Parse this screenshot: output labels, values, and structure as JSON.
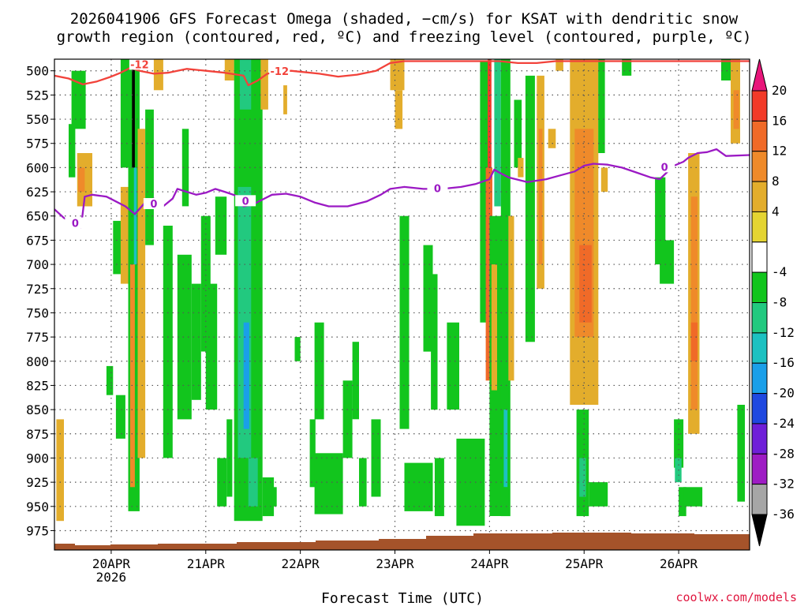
{
  "chart_data": {
    "type": "heatmap",
    "title_line1": "2026041906 GFS Forecast Omega (shaded, −cm/s) for KSAT with dendritic snow",
    "title_line2": "growth region (contoured, red, ºC) and freezing level (contoured, purple, ºC)",
    "xlabel": "Forecast Time (UTC)",
    "credit": "coolwx.com/models",
    "x_ticks": [
      "20APR",
      "21APR",
      "22APR",
      "23APR",
      "24APR",
      "25APR",
      "26APR"
    ],
    "x_tick_sublabel": "2026",
    "x_range_days": [
      19.4,
      26.75
    ],
    "y_ticks": [
      500,
      525,
      550,
      575,
      600,
      625,
      650,
      675,
      700,
      725,
      750,
      775,
      800,
      825,
      850,
      875,
      900,
      925,
      950,
      975
    ],
    "y_range_hpa": [
      488,
      995
    ],
    "colorbar": {
      "labels": [
        "20",
        "16",
        "12",
        "8",
        "4",
        "-4",
        "-8",
        "-12",
        "-16",
        "-20",
        "-24",
        "-28",
        "-32",
        "-36"
      ],
      "colors_top_to_bottom": [
        "#e8157a",
        "#f23a28",
        "#f06a28",
        "#ef8a2a",
        "#e3ad2c",
        "#e4d432",
        "#ffffff",
        "#12c51d",
        "#22c97f",
        "#1cc1c1",
        "#1a9fe9",
        "#1f48e0",
        "#6f1fd8",
        "#9e1cc4",
        "#a6a6a6",
        "#000000"
      ]
    },
    "contour_dgz_label": "-12",
    "contour_freezing_label": "0",
    "dgz_minus12_hpa": [
      [
        19.4,
        505
      ],
      [
        19.55,
        508
      ],
      [
        19.7,
        514
      ],
      [
        19.85,
        511
      ],
      [
        20.0,
        506
      ],
      [
        20.1,
        502
      ],
      [
        20.2,
        497
      ],
      [
        20.3,
        500
      ],
      [
        20.45,
        503
      ],
      [
        20.6,
        502
      ],
      [
        20.8,
        498
      ],
      [
        21.0,
        500
      ],
      [
        21.2,
        502
      ],
      [
        21.4,
        505
      ],
      [
        21.45,
        515
      ],
      [
        21.55,
        510
      ],
      [
        21.65,
        503
      ],
      [
        21.9,
        500
      ],
      [
        22.2,
        503
      ],
      [
        22.4,
        506
      ],
      [
        22.6,
        504
      ],
      [
        22.8,
        500
      ],
      [
        22.95,
        492
      ],
      [
        23.1,
        490
      ],
      [
        23.4,
        490
      ],
      [
        23.7,
        490
      ],
      [
        24.1,
        490
      ],
      [
        24.3,
        492
      ],
      [
        24.5,
        492
      ],
      [
        24.7,
        490
      ],
      [
        25.0,
        490
      ],
      [
        25.4,
        490
      ],
      [
        25.8,
        490
      ],
      [
        26.2,
        490
      ],
      [
        26.75,
        490
      ]
    ],
    "freezing_level_0c_hpa": [
      [
        19.4,
        643
      ],
      [
        19.5,
        652
      ],
      [
        19.6,
        658
      ],
      [
        19.68,
        662
      ],
      [
        19.72,
        630
      ],
      [
        19.8,
        628
      ],
      [
        19.95,
        630
      ],
      [
        20.05,
        635
      ],
      [
        20.15,
        640
      ],
      [
        20.25,
        648
      ],
      [
        20.35,
        637
      ],
      [
        20.45,
        632
      ],
      [
        20.55,
        640
      ],
      [
        20.65,
        632
      ],
      [
        20.7,
        622
      ],
      [
        20.8,
        625
      ],
      [
        20.9,
        628
      ],
      [
        21.0,
        626
      ],
      [
        21.1,
        622
      ],
      [
        21.2,
        625
      ],
      [
        21.35,
        630
      ],
      [
        21.4,
        640
      ],
      [
        21.5,
        638
      ],
      [
        21.6,
        633
      ],
      [
        21.7,
        628
      ],
      [
        21.85,
        627
      ],
      [
        22.0,
        630
      ],
      [
        22.15,
        636
      ],
      [
        22.3,
        640
      ],
      [
        22.5,
        640
      ],
      [
        22.7,
        635
      ],
      [
        22.85,
        628
      ],
      [
        22.95,
        622
      ],
      [
        23.1,
        620
      ],
      [
        23.3,
        622
      ],
      [
        23.5,
        622
      ],
      [
        23.7,
        620
      ],
      [
        23.85,
        617
      ],
      [
        24.0,
        612
      ],
      [
        24.05,
        602
      ],
      [
        24.1,
        605
      ],
      [
        24.2,
        610
      ],
      [
        24.4,
        615
      ],
      [
        24.6,
        612
      ],
      [
        24.75,
        608
      ],
      [
        24.9,
        604
      ],
      [
        25.0,
        598
      ],
      [
        25.1,
        596
      ],
      [
        25.25,
        597
      ],
      [
        25.4,
        600
      ],
      [
        25.55,
        605
      ],
      [
        25.7,
        610
      ],
      [
        25.8,
        612
      ],
      [
        25.95,
        598
      ],
      [
        26.05,
        594
      ],
      [
        26.1,
        590
      ],
      [
        26.2,
        585
      ],
      [
        26.3,
        584
      ],
      [
        26.4,
        581
      ],
      [
        26.5,
        588
      ],
      [
        26.75,
        587
      ]
    ],
    "omega_regions": [
      {
        "t0": 19.42,
        "t1": 19.5,
        "p0": 860,
        "p1": 965,
        "value": 6
      },
      {
        "t0": 19.55,
        "t1": 19.62,
        "p0": 555,
        "p1": 610,
        "value": -6
      },
      {
        "t0": 19.58,
        "t1": 19.73,
        "p0": 500,
        "p1": 560,
        "value": -6
      },
      {
        "t0": 19.64,
        "t1": 19.8,
        "p0": 585,
        "p1": 640,
        "value": 7
      },
      {
        "t0": 19.65,
        "t1": 19.72,
        "p0": 600,
        "p1": 625,
        "value": 10
      },
      {
        "t0": 19.95,
        "t1": 20.02,
        "p0": 805,
        "p1": 835,
        "value": -6
      },
      {
        "t0": 20.02,
        "t1": 20.12,
        "p0": 655,
        "p1": 710,
        "value": -6
      },
      {
        "t0": 20.05,
        "t1": 20.15,
        "p0": 835,
        "p1": 880,
        "value": -6
      },
      {
        "t0": 20.1,
        "t1": 20.2,
        "p0": 488,
        "p1": 600,
        "value": -6
      },
      {
        "t0": 20.1,
        "t1": 20.2,
        "p0": 620,
        "p1": 720,
        "value": 5
      },
      {
        "t0": 20.18,
        "t1": 20.3,
        "p0": 488,
        "p1": 955,
        "value": -6
      },
      {
        "t0": 20.2,
        "t1": 20.25,
        "p0": 700,
        "p1": 930,
        "value": 10
      },
      {
        "t0": 20.22,
        "t1": 20.25,
        "p0": 488,
        "p1": 600,
        "value": -40
      },
      {
        "t0": 20.24,
        "t1": 20.27,
        "p0": 600,
        "p1": 700,
        "value": -14
      },
      {
        "t0": 20.28,
        "t1": 20.36,
        "p0": 560,
        "p1": 900,
        "value": 6
      },
      {
        "t0": 20.36,
        "t1": 20.45,
        "p0": 540,
        "p1": 680,
        "value": -6
      },
      {
        "t0": 20.45,
        "t1": 20.55,
        "p0": 488,
        "p1": 520,
        "value": 6
      },
      {
        "t0": 20.55,
        "t1": 20.65,
        "p0": 660,
        "p1": 900,
        "value": -6
      },
      {
        "t0": 20.7,
        "t1": 20.85,
        "p0": 690,
        "p1": 860,
        "value": -6
      },
      {
        "t0": 20.75,
        "t1": 20.82,
        "p0": 560,
        "p1": 640,
        "value": -6
      },
      {
        "t0": 20.85,
        "t1": 20.95,
        "p0": 720,
        "p1": 840,
        "value": -6
      },
      {
        "t0": 20.95,
        "t1": 21.05,
        "p0": 650,
        "p1": 790,
        "value": -6
      },
      {
        "t0": 21.0,
        "t1": 21.12,
        "p0": 720,
        "p1": 850,
        "value": -6
      },
      {
        "t0": 21.1,
        "t1": 21.22,
        "p0": 630,
        "p1": 690,
        "value": -6
      },
      {
        "t0": 21.12,
        "t1": 21.22,
        "p0": 900,
        "p1": 950,
        "value": -6
      },
      {
        "t0": 21.2,
        "t1": 21.3,
        "p0": 488,
        "p1": 510,
        "value": 6
      },
      {
        "t0": 21.22,
        "t1": 21.28,
        "p0": 860,
        "p1": 940,
        "value": -6
      },
      {
        "t0": 21.3,
        "t1": 21.6,
        "p0": 488,
        "p1": 965,
        "value": -6
      },
      {
        "t0": 21.34,
        "t1": 21.48,
        "p0": 620,
        "p1": 900,
        "value": -10
      },
      {
        "t0": 21.4,
        "t1": 21.46,
        "p0": 760,
        "p1": 870,
        "value": -18
      },
      {
        "t0": 21.36,
        "t1": 21.48,
        "p0": 488,
        "p1": 540,
        "value": -10
      },
      {
        "t0": 21.45,
        "t1": 21.55,
        "p0": 900,
        "p1": 950,
        "value": -10
      },
      {
        "t0": 21.58,
        "t1": 21.66,
        "p0": 488,
        "p1": 540,
        "value": 6
      },
      {
        "t0": 21.6,
        "t1": 21.72,
        "p0": 920,
        "p1": 960,
        "value": -6
      },
      {
        "t0": 21.7,
        "t1": 21.75,
        "p0": 930,
        "p1": 950,
        "value": -6
      },
      {
        "t0": 21.82,
        "t1": 21.86,
        "p0": 515,
        "p1": 545,
        "value": 6
      },
      {
        "t0": 21.94,
        "t1": 22.0,
        "p0": 775,
        "p1": 800,
        "value": -6
      },
      {
        "t0": 22.1,
        "t1": 22.16,
        "p0": 860,
        "p1": 930,
        "value": -6
      },
      {
        "t0": 22.15,
        "t1": 22.25,
        "p0": 760,
        "p1": 860,
        "value": -6
      },
      {
        "t0": 22.15,
        "t1": 22.45,
        "p0": 895,
        "p1": 958,
        "value": -6
      },
      {
        "t0": 22.45,
        "t1": 22.55,
        "p0": 820,
        "p1": 900,
        "value": -6
      },
      {
        "t0": 22.55,
        "t1": 22.62,
        "p0": 780,
        "p1": 860,
        "value": -6
      },
      {
        "t0": 22.62,
        "t1": 22.7,
        "p0": 900,
        "p1": 950,
        "value": -6
      },
      {
        "t0": 22.75,
        "t1": 22.85,
        "p0": 860,
        "p1": 940,
        "value": -6
      },
      {
        "t0": 22.95,
        "t1": 23.1,
        "p0": 488,
        "p1": 520,
        "value": 6
      },
      {
        "t0": 23.0,
        "t1": 23.08,
        "p0": 520,
        "p1": 560,
        "value": 5
      },
      {
        "t0": 23.05,
        "t1": 23.15,
        "p0": 650,
        "p1": 870,
        "value": -6
      },
      {
        "t0": 23.1,
        "t1": 23.4,
        "p0": 905,
        "p1": 955,
        "value": -6
      },
      {
        "t0": 23.3,
        "t1": 23.4,
        "p0": 680,
        "p1": 790,
        "value": -6
      },
      {
        "t0": 23.38,
        "t1": 23.45,
        "p0": 710,
        "p1": 850,
        "value": -6
      },
      {
        "t0": 23.42,
        "t1": 23.52,
        "p0": 900,
        "p1": 960,
        "value": -6
      },
      {
        "t0": 23.55,
        "t1": 23.68,
        "p0": 760,
        "p1": 850,
        "value": -6
      },
      {
        "t0": 23.65,
        "t1": 23.95,
        "p0": 880,
        "p1": 970,
        "value": -6
      },
      {
        "t0": 23.9,
        "t1": 24.0,
        "p0": 490,
        "p1": 760,
        "value": -6
      },
      {
        "t0": 23.96,
        "t1": 24.03,
        "p0": 600,
        "p1": 820,
        "value": 12
      },
      {
        "t0": 23.98,
        "t1": 24.02,
        "p0": 488,
        "p1": 600,
        "value": 18
      },
      {
        "t0": 24.0,
        "t1": 24.15,
        "p0": 650,
        "p1": 960,
        "value": -6
      },
      {
        "t0": 24.02,
        "t1": 24.08,
        "p0": 700,
        "p1": 830,
        "value": 7
      },
      {
        "t0": 24.05,
        "t1": 24.12,
        "p0": 488,
        "p1": 640,
        "value": -10
      },
      {
        "t0": 24.12,
        "t1": 24.22,
        "p0": 488,
        "p1": 960,
        "value": -6
      },
      {
        "t0": 24.15,
        "t1": 24.19,
        "p0": 850,
        "p1": 930,
        "value": -14
      },
      {
        "t0": 24.2,
        "t1": 24.26,
        "p0": 650,
        "p1": 820,
        "value": 6
      },
      {
        "t0": 24.26,
        "t1": 24.34,
        "p0": 530,
        "p1": 600,
        "value": -6
      },
      {
        "t0": 24.3,
        "t1": 24.36,
        "p0": 590,
        "p1": 610,
        "value": 6
      },
      {
        "t0": 24.38,
        "t1": 24.48,
        "p0": 505,
        "p1": 780,
        "value": -6
      },
      {
        "t0": 24.5,
        "t1": 24.58,
        "p0": 505,
        "p1": 725,
        "value": 6
      },
      {
        "t0": 24.52,
        "t1": 24.56,
        "p0": 560,
        "p1": 700,
        "value": 10
      },
      {
        "t0": 24.62,
        "t1": 24.7,
        "p0": 560,
        "p1": 580,
        "value": 6
      },
      {
        "t0": 24.7,
        "t1": 24.78,
        "p0": 488,
        "p1": 500,
        "value": 6
      },
      {
        "t0": 24.85,
        "t1": 25.15,
        "p0": 488,
        "p1": 845,
        "value": 6
      },
      {
        "t0": 24.9,
        "t1": 25.1,
        "p0": 560,
        "p1": 775,
        "value": 10
      },
      {
        "t0": 24.95,
        "t1": 25.08,
        "p0": 680,
        "p1": 760,
        "value": 14
      },
      {
        "t0": 24.92,
        "t1": 25.05,
        "p0": 850,
        "p1": 960,
        "value": -6
      },
      {
        "t0": 24.95,
        "t1": 25.02,
        "p0": 900,
        "p1": 940,
        "value": -10
      },
      {
        "t0": 25.05,
        "t1": 25.25,
        "p0": 925,
        "p1": 950,
        "value": -6
      },
      {
        "t0": 25.15,
        "t1": 25.22,
        "p0": 488,
        "p1": 585,
        "value": -6
      },
      {
        "t0": 25.18,
        "t1": 25.25,
        "p0": 600,
        "p1": 625,
        "value": 6
      },
      {
        "t0": 25.4,
        "t1": 25.5,
        "p0": 488,
        "p1": 505,
        "value": -6
      },
      {
        "t0": 25.75,
        "t1": 25.86,
        "p0": 610,
        "p1": 700,
        "value": -6
      },
      {
        "t0": 25.8,
        "t1": 25.95,
        "p0": 675,
        "p1": 720,
        "value": -6
      },
      {
        "t0": 25.95,
        "t1": 26.05,
        "p0": 860,
        "p1": 910,
        "value": -6
      },
      {
        "t0": 25.96,
        "t1": 26.03,
        "p0": 900,
        "p1": 925,
        "value": -10
      },
      {
        "t0": 26.0,
        "t1": 26.08,
        "p0": 930,
        "p1": 960,
        "value": -6
      },
      {
        "t0": 26.05,
        "t1": 26.25,
        "p0": 930,
        "p1": 950,
        "value": -6
      },
      {
        "t0": 26.1,
        "t1": 26.22,
        "p0": 585,
        "p1": 875,
        "value": 6
      },
      {
        "t0": 26.13,
        "t1": 26.2,
        "p0": 630,
        "p1": 850,
        "value": 10
      },
      {
        "t0": 26.13,
        "t1": 26.2,
        "p0": 760,
        "p1": 800,
        "value": 14
      },
      {
        "t0": 26.45,
        "t1": 26.55,
        "p0": 488,
        "p1": 510,
        "value": -6
      },
      {
        "t0": 26.55,
        "t1": 26.65,
        "p0": 488,
        "p1": 575,
        "value": 6
      },
      {
        "t0": 26.58,
        "t1": 26.64,
        "p0": 520,
        "p1": 560,
        "value": 10
      },
      {
        "t0": 26.62,
        "t1": 26.7,
        "p0": 845,
        "p1": 945,
        "value": -6
      }
    ]
  }
}
